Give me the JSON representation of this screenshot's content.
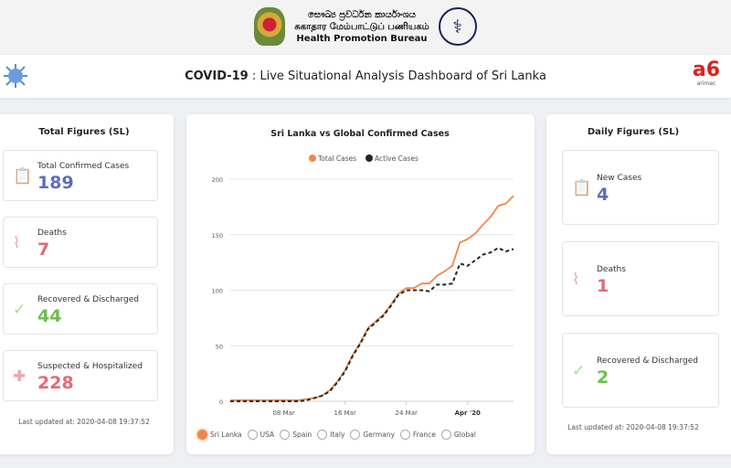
{
  "header": {
    "org_sinhala": "සෞඛ්‍ය ප්‍රවර්ධන කාර්යාංශය",
    "org_tamil": "சுகாதார மேம்பாட்டுப் பணியகம்",
    "org_english": "Health Promotion Bureau"
  },
  "titlebar": {
    "title_bold": "COVID-19",
    "title_rest": " : Live Situational Analysis Dashboard of Sri Lanka",
    "brand": "arimac",
    "brand_mark": "a6"
  },
  "total": {
    "heading": "Total Figures (SL)",
    "items": [
      {
        "label": "Total Confirmed Cases",
        "value": "189",
        "color": "#5b6fbf",
        "icon": "clipboard-search-icon"
      },
      {
        "label": "Deaths",
        "value": "7",
        "color": "#e06b74",
        "icon": "heartbeat-icon"
      },
      {
        "label": "Recovered & Discharged",
        "value": "44",
        "color": "#6cbf4f",
        "icon": "check-circle-icon"
      },
      {
        "label": "Suspected & Hospitalized",
        "value": "228",
        "color": "#e06b74",
        "icon": "plus-circle-icon"
      }
    ],
    "updated": "Last updated at: 2020-04-08 19:37:52"
  },
  "daily": {
    "heading": "Daily Figures (SL)",
    "items": [
      {
        "label": "New Cases",
        "value": "4",
        "color": "#5b6fbf",
        "icon": "clipboard-search-icon"
      },
      {
        "label": "Deaths",
        "value": "1",
        "color": "#e06b74",
        "icon": "heartbeat-icon"
      },
      {
        "label": "Recovered & Discharged",
        "value": "2",
        "color": "#6cbf4f",
        "icon": "check-circle-icon"
      }
    ],
    "updated": "Last updated at: 2020-04-08 19:37:52"
  },
  "options": [
    {
      "label": "Sri Lanka",
      "selected": true
    },
    {
      "label": "USA"
    },
    {
      "label": "Spain"
    },
    {
      "label": "Italy"
    },
    {
      "label": "Germany"
    },
    {
      "label": "France"
    },
    {
      "label": "Global"
    }
  ],
  "chart_data": {
    "type": "line",
    "title": "Sri Lanka vs Global Confirmed Cases",
    "x_start": "2020-03-01",
    "x_end": "2020-04-07",
    "xticks": [
      {
        "label": "08 Mar",
        "index": 7
      },
      {
        "label": "16 Mar",
        "index": 15
      },
      {
        "label": "24 Mar",
        "index": 23
      },
      {
        "label": "Apr '20",
        "index": 31,
        "bold": true
      }
    ],
    "yticks": [
      0,
      50,
      100,
      150,
      200
    ],
    "ylim": [
      0,
      200
    ],
    "legend": "top",
    "series": [
      {
        "name": "Total Cases",
        "color": "#f0874a",
        "dashed": false,
        "values": [
          1,
          1,
          1,
          1,
          1,
          1,
          1,
          1,
          1,
          1,
          2,
          3,
          5,
          10,
          18,
          28,
          42,
          53,
          66,
          72,
          78,
          87,
          97,
          102,
          102,
          106,
          106,
          113,
          117,
          122,
          143,
          146,
          151,
          159,
          166,
          176,
          178,
          185
        ]
      },
      {
        "name": "Active Cases",
        "color": "#1c2b22",
        "dashed": true,
        "values": [
          0,
          0,
          0,
          0,
          0,
          0,
          0,
          0,
          0,
          0,
          1,
          3,
          5,
          9,
          17,
          27,
          41,
          52,
          65,
          71,
          77,
          86,
          96,
          100,
          100,
          100,
          99,
          105,
          105,
          106,
          124,
          122,
          127,
          132,
          134,
          138,
          135,
          137
        ]
      }
    ]
  }
}
